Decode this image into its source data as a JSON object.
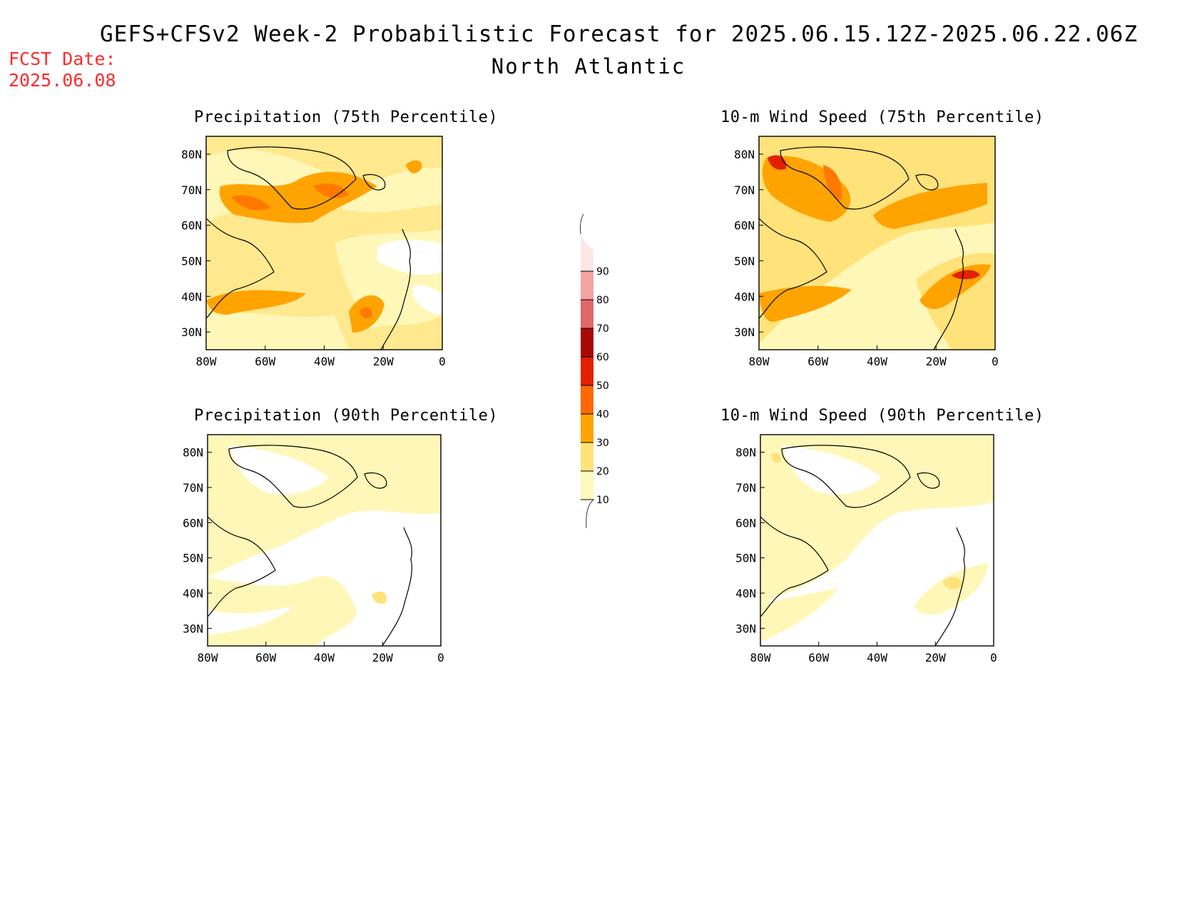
{
  "header": {
    "title": "GEFS+CFSv2 Week-2 Probabilistic Forecast for 2025.06.15.12Z-2025.06.22.06Z",
    "region": "North Atlantic",
    "fcst_date_label": "FCST Date:",
    "fcst_date": "2025.06.08"
  },
  "axes": {
    "lat_labels": [
      "80N",
      "70N",
      "60N",
      "50N",
      "40N",
      "30N"
    ],
    "lon_labels": [
      "80W",
      "60W",
      "40W",
      "20W",
      "0"
    ]
  },
  "colorbar": {
    "levels": [
      "10",
      "20",
      "30",
      "40",
      "50",
      "60",
      "70",
      "80",
      "90"
    ],
    "colors": [
      "#fff9be",
      "#ffe27a",
      "#ffa300",
      "#ff6800",
      "#e32000",
      "#a80a00",
      "#e06868",
      "#f4a2a2",
      "#fde6e6"
    ]
  },
  "panels": [
    {
      "id": "precip-75",
      "title": "Precipitation (75th Percentile)"
    },
    {
      "id": "wind-75",
      "title": "10-m Wind Speed (75th Percentile)"
    },
    {
      "id": "precip-90",
      "title": "Precipitation (90th Percentile)"
    },
    {
      "id": "wind-90",
      "title": "10-m Wind Speed (90th Percentile)"
    }
  ]
}
